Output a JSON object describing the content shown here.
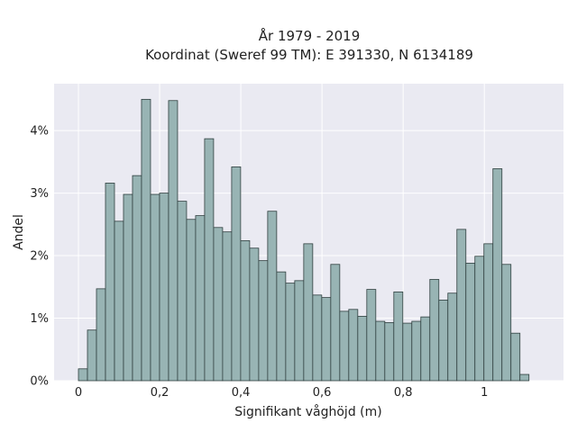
{
  "chart_data": {
    "type": "bar",
    "title_line1": "År 1979 - 2019",
    "title_line2": "Koordinat (Sweref 99 TM): E 391330, N 6134189",
    "xlabel": "Signifikant våghöjd (m)",
    "ylabel": "Andel",
    "xlim": [
      -0.06,
      1.195
    ],
    "ylim": [
      0,
      4.75
    ],
    "x_ticks": [
      {
        "value": 0,
        "label": "0"
      },
      {
        "value": 0.2,
        "label": "0,2"
      },
      {
        "value": 0.4,
        "label": "0,4"
      },
      {
        "value": 0.6,
        "label": "0,6"
      },
      {
        "value": 0.8,
        "label": "0,8"
      },
      {
        "value": 1,
        "label": "1"
      }
    ],
    "y_ticks": [
      {
        "value": 0,
        "label": "0%"
      },
      {
        "value": 1,
        "label": "1%"
      },
      {
        "value": 2,
        "label": "2%"
      },
      {
        "value": 3,
        "label": "3%"
      },
      {
        "value": 4,
        "label": "4%"
      }
    ],
    "bin_start": 0,
    "bin_width": 0.0222,
    "values": [
      0.19,
      0.81,
      1.47,
      3.16,
      2.55,
      2.98,
      3.28,
      4.5,
      2.98,
      3.0,
      4.48,
      2.87,
      2.58,
      2.64,
      3.87,
      2.45,
      2.38,
      3.42,
      2.24,
      2.12,
      1.92,
      2.71,
      1.74,
      1.56,
      1.6,
      2.19,
      1.37,
      1.33,
      1.86,
      1.11,
      1.14,
      1.03,
      1.46,
      0.95,
      0.93,
      1.42,
      0.92,
      0.95,
      1.02,
      1.62,
      1.29,
      1.4,
      2.42,
      1.88,
      1.99,
      2.19,
      3.39,
      1.86,
      0.76,
      0.1
    ],
    "colors": {
      "plot_bg": "#eaeaf2",
      "grid": "#ffffff",
      "bar_fill": "#98b4b4",
      "bar_edge": "#2f3f3f"
    }
  }
}
